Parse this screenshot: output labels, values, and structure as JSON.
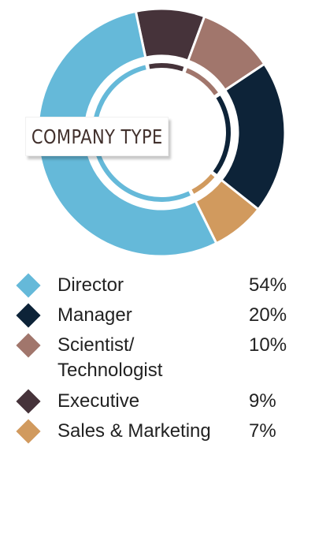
{
  "chart_data": {
    "type": "pie",
    "title": "COMPANY TYPE",
    "series": [
      {
        "name": "Director",
        "value": 54,
        "label": "54%",
        "color": "#65b9d9"
      },
      {
        "name": "Manager",
        "value": 20,
        "label": "20%",
        "color": "#0d2338"
      },
      {
        "name": "Scientist/\nTechnologist",
        "value": 10,
        "label": "10%",
        "color": "#a1766c"
      },
      {
        "name": "Executive",
        "value": 9,
        "label": "9%",
        "color": "#46333a"
      },
      {
        "name": "Sales & Marketing",
        "value": 7,
        "label": "7%",
        "color": "#d19a5e"
      }
    ]
  }
}
